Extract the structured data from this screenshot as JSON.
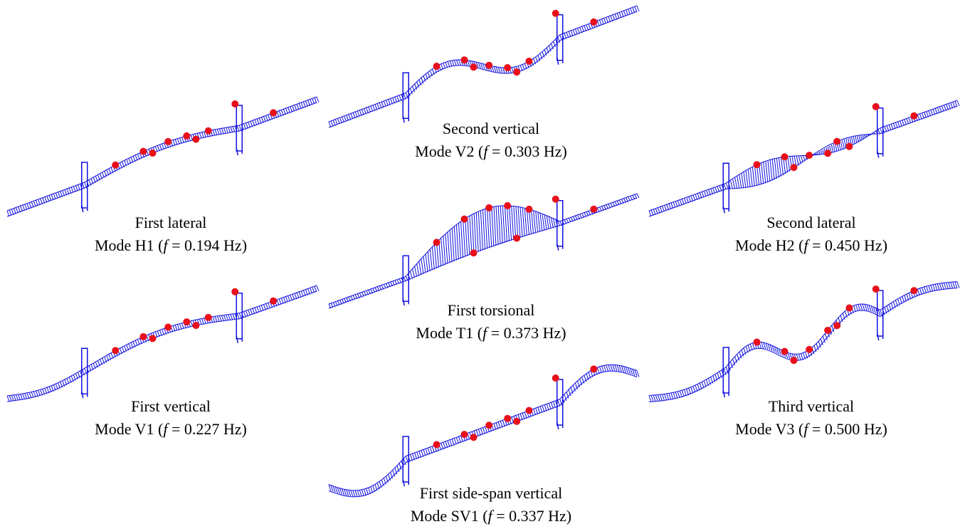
{
  "panels": [
    {
      "title": "First lateral",
      "mode": "Mode H1 (f = 0.194 Hz)"
    },
    {
      "title": "Second vertical",
      "mode": "Mode V2 (f = 0.303 Hz)"
    },
    {
      "title": "Second lateral",
      "mode": "Mode H2 (f = 0.450 Hz)"
    },
    {
      "title": "First vertical",
      "mode": "Mode V1 (f = 0.227 Hz)"
    },
    {
      "title": "First torsional",
      "mode": "Mode T1 (f = 0.373 Hz)"
    },
    {
      "title": "Third vertical",
      "mode": "Mode V3 (f = 0.500 Hz)"
    },
    {
      "title": "First side-span vertical",
      "mode": "Mode SV1 (f = 0.337 Hz)"
    }
  ]
}
